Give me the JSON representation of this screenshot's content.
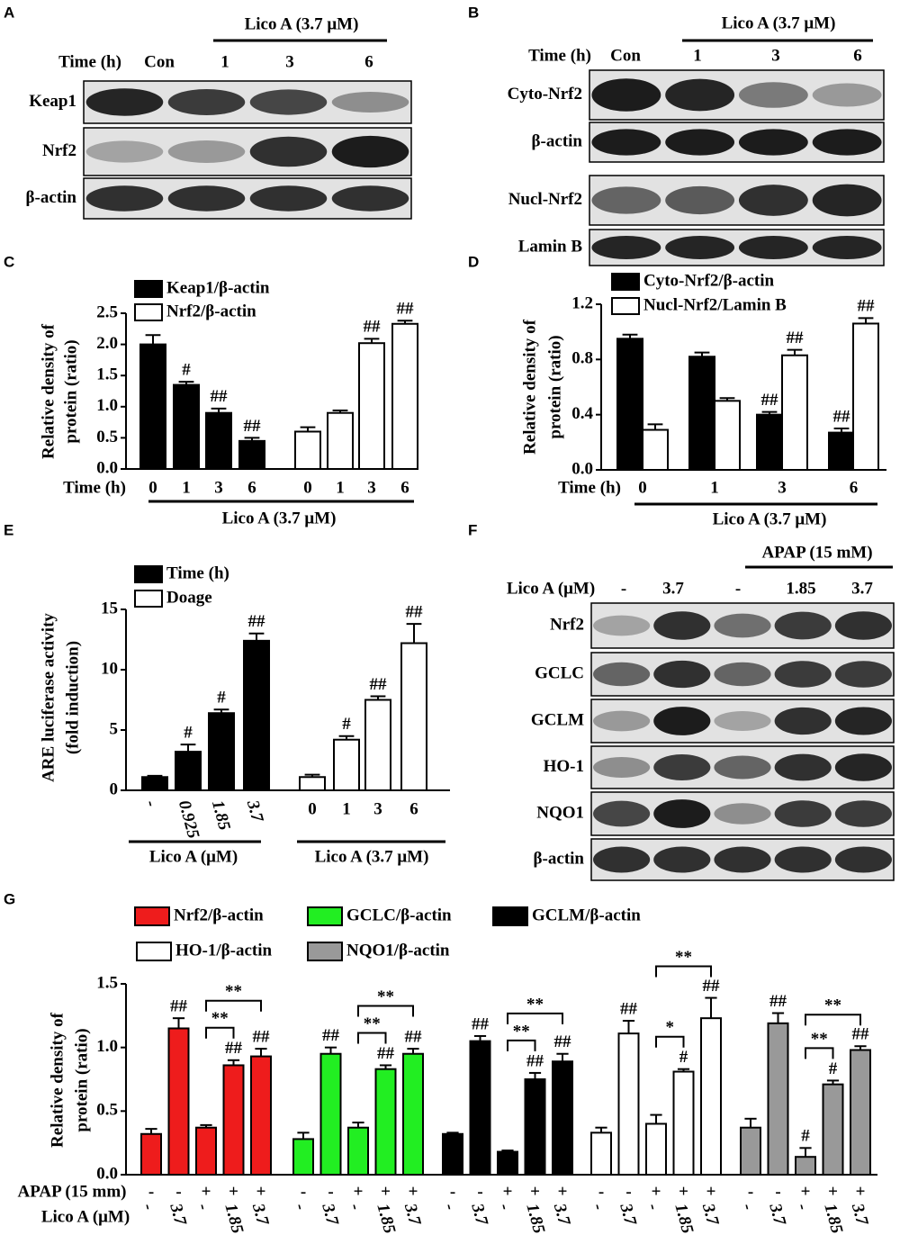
{
  "panels": [
    "A",
    "B",
    "C",
    "D",
    "E",
    "F",
    "G"
  ],
  "blots": [
    {
      "header": "Lico A (3.7 μM)",
      "time_label": "Time (h)",
      "lanes": [
        "Con",
        "1",
        "3",
        "6"
      ],
      "rows": [
        "Keap1",
        "Nrf2",
        "β-actin"
      ]
    },
    {
      "header": "Lico A (3.7 μM)",
      "time_label": "Time (h)",
      "lanes": [
        "Con",
        "1",
        "3",
        "6"
      ],
      "rows": [
        "Cyto-Nrf2",
        "β-actin",
        "Nucl-Nrf2",
        "Lamin B"
      ]
    },
    {
      "header": "APAP (15 mM)",
      "time_label": "Lico A (μM)",
      "lanes": [
        "-",
        "3.7",
        "-",
        "1.85",
        "3.7"
      ],
      "rows": [
        "Nrf2",
        "GCLC",
        "GCLM",
        "HO-1",
        "NQO1",
        "β-actin"
      ]
    }
  ],
  "chart_data": [
    {
      "type": "bar",
      "ylabel": [
        "Relative density of",
        "protein (ratio)"
      ],
      "xlabel": "Time (h)",
      "group_labels": [
        "Lico A (3.7 μM)"
      ],
      "category_groups": [
        [
          "0",
          "1",
          "3",
          "6"
        ],
        [
          "0",
          "1",
          "3",
          "6"
        ]
      ],
      "ylim": [
        0,
        2.5
      ],
      "yticks": [
        {
          "value": 0,
          "label": "0.0"
        },
        0.5,
        {
          "value": 1,
          "label": "1.0"
        },
        1.5,
        {
          "value": 2,
          "label": "2.0"
        },
        2.5
      ],
      "series": [
        {
          "name": "Keap1/β-actin",
          "color": "#000000",
          "values": [
            2.0,
            1.35,
            0.9,
            0.45
          ],
          "errors": [
            0.15,
            0.05,
            0.07,
            0.05
          ],
          "annotations": [
            null,
            "#",
            "##",
            "##"
          ]
        },
        {
          "name": "Nrf2/β-actin",
          "color": "#ffffff",
          "values": [
            0.6,
            0.9,
            2.02,
            2.33
          ],
          "errors": [
            0.07,
            0.04,
            0.07,
            0.05
          ],
          "annotations": [
            null,
            null,
            "##",
            "##"
          ]
        }
      ]
    },
    {
      "type": "bar",
      "ylabel": [
        "Relative density of",
        "protein (ratio)"
      ],
      "xlabel": "Time (h)",
      "group_labels": [
        "Lico A (3.7 μM)"
      ],
      "categories": [
        "0",
        "1",
        "3",
        "6"
      ],
      "ylim": [
        0,
        1.2
      ],
      "yticks": [
        {
          "value": 0,
          "label": "0.0"
        },
        0.4,
        0.8,
        1.2
      ],
      "series": [
        {
          "name": "Cyto-Nrf2/β-actin",
          "color": "#000000",
          "values": [
            0.95,
            0.82,
            0.4,
            0.27
          ],
          "errors": [
            0.03,
            0.03,
            0.02,
            0.03
          ],
          "annotations": [
            null,
            null,
            "##",
            "##"
          ]
        },
        {
          "name": "Nucl-Nrf2/Lamin B",
          "color": "#ffffff",
          "values": [
            0.29,
            0.5,
            0.83,
            1.06
          ],
          "errors": [
            0.04,
            0.02,
            0.04,
            0.04
          ],
          "annotations": [
            null,
            null,
            "##",
            "##"
          ]
        }
      ]
    },
    {
      "type": "bar",
      "ylabel": [
        "ARE luciferase activity",
        "(fold induction)"
      ],
      "group_labels": [
        "Lico A (μM)",
        "Lico A (3.7 μM)"
      ],
      "category_groups": [
        [
          "-",
          "0.925",
          "1.85",
          "3.7"
        ],
        [
          "0",
          "1",
          "3",
          "6"
        ]
      ],
      "ylim": [
        0,
        15
      ],
      "yticks": [
        0,
        5,
        10,
        15
      ],
      "series": [
        {
          "name": "Time (h)",
          "color": "#000000",
          "values": [
            1.1,
            3.2,
            6.4,
            12.4
          ],
          "errors": [
            0.1,
            0.6,
            0.3,
            0.6
          ],
          "annotations": [
            null,
            "#",
            "#",
            "##"
          ]
        },
        {
          "name": "Doage",
          "color": "#ffffff",
          "values": [
            1.1,
            4.2,
            7.5,
            12.2
          ],
          "errors": [
            0.2,
            0.3,
            0.3,
            1.6
          ],
          "annotations": [
            null,
            "#",
            "##",
            "##"
          ]
        }
      ]
    },
    {
      "type": "bar",
      "ylabel": [
        "Relative density of",
        "protein (ratio)"
      ],
      "rows": [
        {
          "label": "APAP (15 mm)",
          "values": [
            "-",
            "-",
            "+",
            "+",
            "+"
          ]
        },
        {
          "label": "Lico A (μM)",
          "values": [
            "-",
            "3.7",
            "-",
            "1.85",
            "3.7"
          ]
        }
      ],
      "ylim": [
        0,
        1.5
      ],
      "yticks": [
        {
          "value": 0,
          "label": "0.0"
        },
        0.5,
        {
          "value": 1,
          "label": "1.0"
        },
        1.5
      ],
      "series": [
        {
          "name": "Nrf2/β-actin",
          "color": "#ee1c1c",
          "values": [
            0.32,
            1.15,
            0.37,
            0.86,
            0.93
          ],
          "errors": [
            0.04,
            0.08,
            0.02,
            0.04,
            0.06
          ],
          "annotations": [
            null,
            "##",
            null,
            "##",
            "##"
          ],
          "brackets": [
            "**",
            "**"
          ]
        },
        {
          "name": "GCLC/β-actin",
          "color": "#22ee22",
          "values": [
            0.28,
            0.95,
            0.37,
            0.83,
            0.95
          ],
          "errors": [
            0.05,
            0.05,
            0.04,
            0.03,
            0.04
          ],
          "annotations": [
            null,
            "##",
            null,
            "##",
            "##"
          ],
          "brackets": [
            "**",
            "**"
          ]
        },
        {
          "name": "GCLM/β-actin",
          "color": "#000000",
          "values": [
            0.32,
            1.05,
            0.18,
            0.75,
            0.89
          ],
          "errors": [
            0.01,
            0.04,
            0.01,
            0.05,
            0.06
          ],
          "annotations": [
            null,
            "##",
            null,
            "##",
            "##"
          ],
          "brackets": [
            "**",
            "**"
          ]
        },
        {
          "name": "HO-1/β-actin",
          "color": "#ffffff",
          "values": [
            0.33,
            1.11,
            0.4,
            0.81,
            1.23
          ],
          "errors": [
            0.04,
            0.1,
            0.07,
            0.02,
            0.16
          ],
          "annotations": [
            null,
            "##",
            null,
            "#",
            "##"
          ],
          "brackets": [
            "*",
            "**"
          ]
        },
        {
          "name": "NQO1/β-actin",
          "color": "#999999",
          "values": [
            0.37,
            1.19,
            0.14,
            0.71,
            0.98
          ],
          "errors": [
            0.07,
            0.08,
            0.07,
            0.03,
            0.03
          ],
          "annotations": [
            null,
            "##",
            "#",
            "#",
            "##"
          ],
          "brackets": [
            "**",
            "**"
          ]
        }
      ]
    }
  ]
}
